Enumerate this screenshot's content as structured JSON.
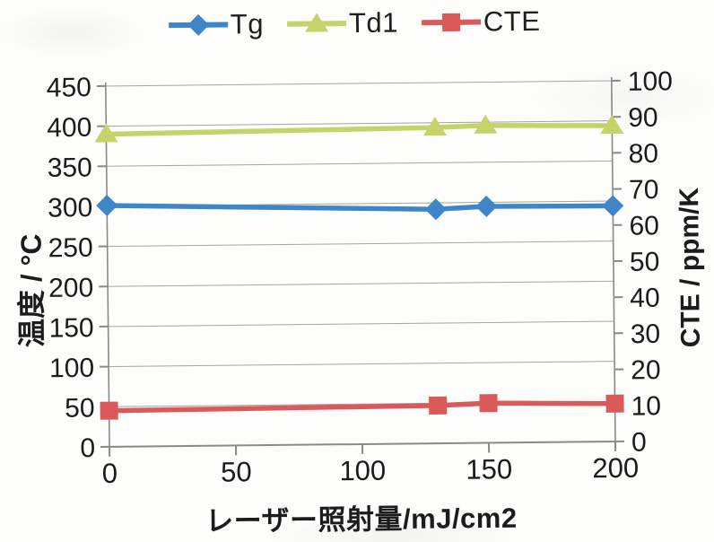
{
  "chart_data": {
    "type": "line",
    "x": [
      0,
      130,
      150,
      200
    ],
    "series": [
      {
        "name": "Tg",
        "axis": "left",
        "marker": "diamond",
        "color": "#3f86c8",
        "values": [
          301,
          292,
          295,
          294
        ]
      },
      {
        "name": "Td1",
        "axis": "left",
        "marker": "triangle",
        "color": "#c5d36a",
        "values": [
          390,
          394,
          396,
          394
        ]
      },
      {
        "name": "CTE",
        "axis": "right",
        "marker": "square",
        "color": "#da5a5a",
        "values": [
          10,
          10.5,
          11,
          10.5
        ]
      }
    ],
    "xlabel": "レーザー照射量/mJ/cm2",
    "ylabel_left": "温度 / °C",
    "ylabel_right": "CTE / ppm/K",
    "xlim": [
      0,
      200
    ],
    "ylim_left": [
      0,
      450
    ],
    "ylim_right": [
      0,
      100
    ],
    "x_ticks": [
      0,
      50,
      100,
      150,
      200
    ],
    "y_ticks_left": [
      0,
      50,
      100,
      150,
      200,
      250,
      300,
      350,
      400,
      450
    ],
    "y_ticks_right": [
      0,
      10,
      20,
      30,
      40,
      50,
      60,
      70,
      80,
      90,
      100
    ],
    "grid": "horizontal-only",
    "legend_position": "top-center",
    "colors": {
      "gridline": "#a3a3a3",
      "axis": "#8a8a8a",
      "tick_text": "#1b1b1b"
    }
  }
}
